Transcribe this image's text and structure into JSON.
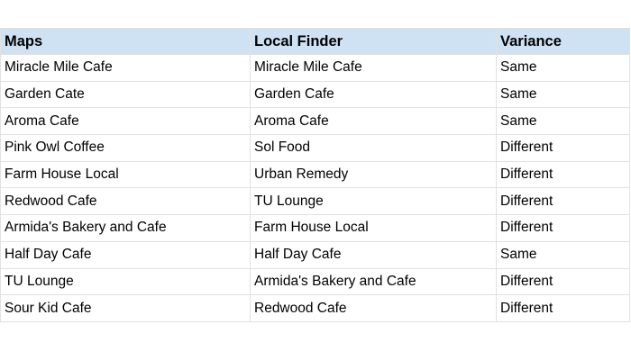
{
  "colors": {
    "header_bg": "#cfe2f3",
    "gridline": "#e1e1e1",
    "text": "#000000",
    "page_bg": "#ffffff"
  },
  "table": {
    "columns": [
      {
        "label": "Maps"
      },
      {
        "label": "Local Finder"
      },
      {
        "label": "Variance"
      }
    ],
    "rows": [
      {
        "maps": "Miracle Mile Cafe",
        "local_finder": "Miracle Mile Cafe",
        "variance": "Same"
      },
      {
        "maps": "Garden Cate",
        "local_finder": "Garden Cafe",
        "variance": "Same"
      },
      {
        "maps": "Aroma Cafe",
        "local_finder": "Aroma Cafe",
        "variance": "Same"
      },
      {
        "maps": "Pink Owl Coffee",
        "local_finder": "Sol Food",
        "variance": "Different"
      },
      {
        "maps": "Farm House Local",
        "local_finder": "Urban Remedy",
        "variance": "Different"
      },
      {
        "maps": "Redwood Cafe",
        "local_finder": "TU Lounge",
        "variance": "Different"
      },
      {
        "maps": "Armida's Bakery and Cafe",
        "local_finder": "Farm House Local",
        "variance": "Different"
      },
      {
        "maps": "Half Day Cafe",
        "local_finder": "Half Day Cafe",
        "variance": "Same"
      },
      {
        "maps": "TU Lounge",
        "local_finder": "Armida's Bakery and Cafe",
        "variance": "Different"
      },
      {
        "maps": "Sour Kid Cafe",
        "local_finder": "Redwood Cafe",
        "variance": "Different"
      }
    ]
  }
}
